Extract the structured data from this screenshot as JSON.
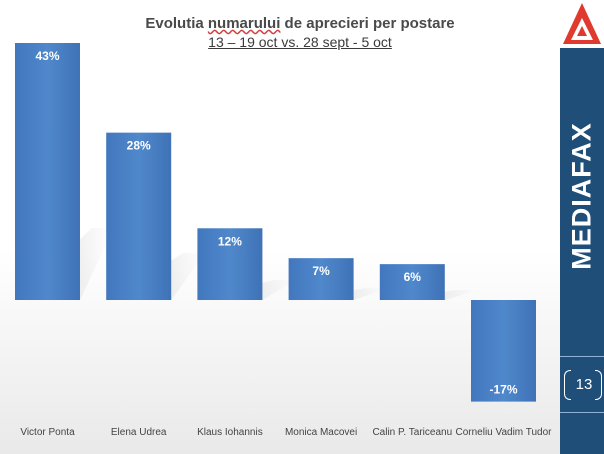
{
  "chart_data": {
    "type": "bar",
    "title": "Evolutia numarului de aprecieri per postare",
    "subtitle": "13 – 19 oct vs. 28 sept - 5 oct",
    "categories": [
      "Victor Ponta",
      "Elena Udrea",
      "Klaus Iohannis",
      "Monica Macovei",
      "Calin P. Tariceanu",
      "Corneliu Vadim Tudor"
    ],
    "values": [
      43,
      28,
      12,
      7,
      6,
      -17
    ],
    "value_labels": [
      "43%",
      "28%",
      "12%",
      "7%",
      "6%",
      "-17%"
    ],
    "ylim": [
      -17,
      43
    ],
    "grid": false,
    "legend": "none"
  },
  "title_parts": {
    "before": "Evolutia ",
    "underlined": "numarului",
    "after": " de aprecieri per postare"
  },
  "brand": {
    "name": "MEDIAFAX"
  },
  "page_number": "13",
  "colors": {
    "bar": "#4a7ec0",
    "sidebar": "#1f4e79",
    "logo_red": "#e03a2f"
  }
}
